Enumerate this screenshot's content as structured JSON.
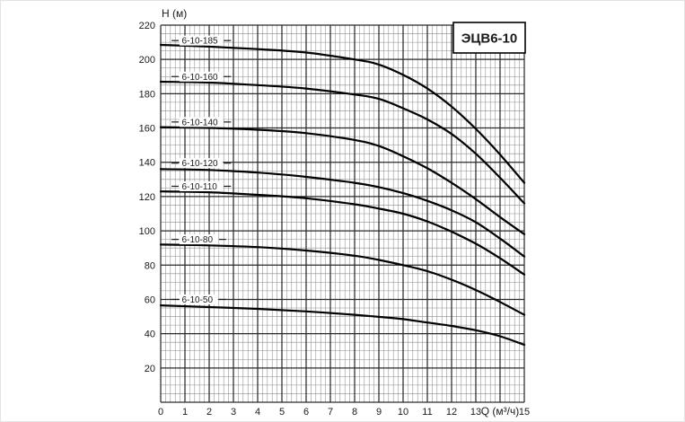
{
  "chart_data": {
    "type": "line",
    "title": "ЭЦВ6-10",
    "xlabel": "Q (м³/ч)",
    "ylabel": "Н (м)",
    "xlim": [
      0,
      15
    ],
    "ylim": [
      0,
      220
    ],
    "grid": true,
    "x_major_step": 1,
    "x_minor_step": 0.2,
    "y_major_step": 20,
    "y_minor_step": 5,
    "x_tick_values": [
      0,
      1,
      2,
      3,
      4,
      5,
      6,
      7,
      8,
      9,
      10,
      11,
      12,
      13,
      15
    ],
    "x_tick_labels": [
      "0",
      "1",
      "2",
      "3",
      "4",
      "5",
      "6",
      "7",
      "8",
      "9",
      "10",
      "11",
      "12",
      "13",
      "15"
    ],
    "xlabel_at_q": 14.0,
    "y_tick_values": [
      20,
      40,
      60,
      80,
      100,
      120,
      140,
      160,
      180,
      200,
      220
    ],
    "y_tick_labels": [
      "20",
      "40",
      "60",
      "80",
      "100",
      "120",
      "140",
      "160",
      "180",
      "200",
      "220"
    ],
    "legend_position": "inline-labels",
    "colors": {
      "curve": "#000000",
      "grid_minor": "#8c8c8c",
      "grid_major": "#2a2a2a",
      "text": "#1a1a1a",
      "background": "#ffffff",
      "title_box_border": "#000000"
    },
    "q_values": [
      0,
      2,
      4,
      6,
      8,
      9,
      10,
      11,
      12,
      13,
      14,
      15
    ],
    "series": [
      {
        "name": "6-10-185",
        "label_q": 0.78,
        "label_h": 211.0,
        "h": [
          208.5,
          207.5,
          206.0,
          204.0,
          200.0,
          197.0,
          191.0,
          183.0,
          172.5,
          159.5,
          144.5,
          128.0
        ]
      },
      {
        "name": "6-10-160",
        "label_q": 0.78,
        "label_h": 190.0,
        "h": [
          187.0,
          186.5,
          185.0,
          183.0,
          179.5,
          177.0,
          171.5,
          165.0,
          156.5,
          145.0,
          131.0,
          116.0
        ]
      },
      {
        "name": "6-10-140",
        "label_q": 0.78,
        "label_h": 163.5,
        "h": [
          160.5,
          160.0,
          159.0,
          157.0,
          153.0,
          149.5,
          143.5,
          136.5,
          128.0,
          118.5,
          108.0,
          98.0
        ]
      },
      {
        "name": "6-10-120",
        "label_q": 0.78,
        "label_h": 139.5,
        "h": [
          136.0,
          135.5,
          134.0,
          131.5,
          128.0,
          125.5,
          122.0,
          117.5,
          112.0,
          105.0,
          95.5,
          85.0
        ]
      },
      {
        "name": "6-10-110",
        "label_q": 0.78,
        "label_h": 126.0,
        "h": [
          123.0,
          122.5,
          121.0,
          119.0,
          115.5,
          113.0,
          110.0,
          105.5,
          99.5,
          92.5,
          84.0,
          74.5
        ]
      },
      {
        "name": "6-10-80",
        "label_q": 0.78,
        "label_h": 95.0,
        "h": [
          92.0,
          91.5,
          90.5,
          88.5,
          85.5,
          83.0,
          80.0,
          76.5,
          71.5,
          65.5,
          58.5,
          51.0
        ]
      },
      {
        "name": "6-10-50",
        "label_q": 0.78,
        "label_h": 60.0,
        "h": [
          56.5,
          55.5,
          54.5,
          53.0,
          51.0,
          49.8,
          48.5,
          46.5,
          44.5,
          42.0,
          38.5,
          33.5
        ]
      }
    ]
  }
}
